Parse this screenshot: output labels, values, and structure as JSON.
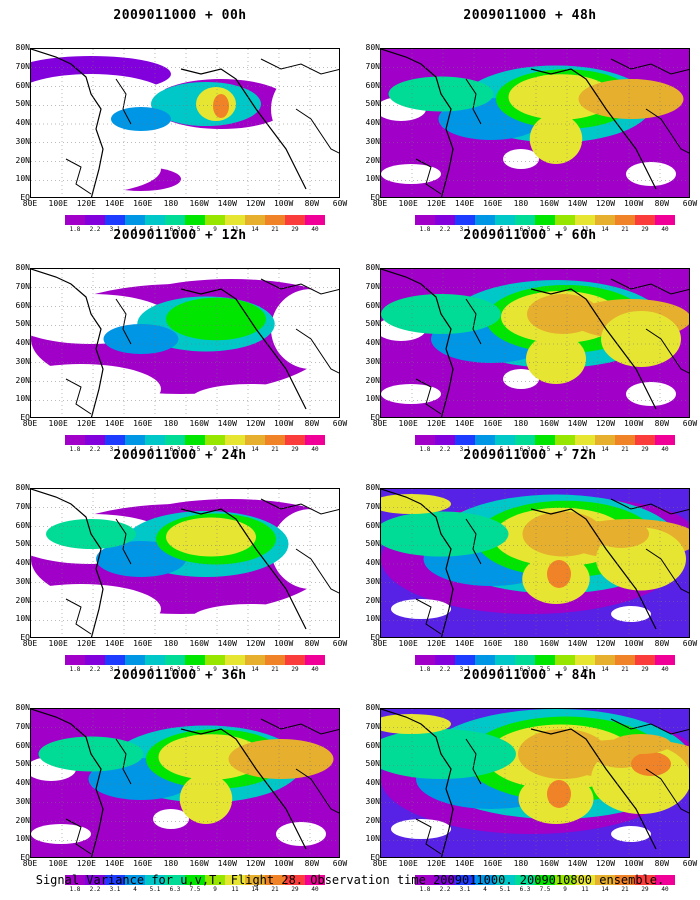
{
  "figure": {
    "caption": "Signal Variance for u,v,T. Flight 28. Observation time 2009011000. 2009010800 ensemble.",
    "lat_labels": [
      "80N",
      "70N",
      "60N",
      "50N",
      "40N",
      "30N",
      "20N",
      "10N",
      "EQ"
    ],
    "lon_labels": [
      "80E",
      "100E",
      "120E",
      "140E",
      "160E",
      "180",
      "160W",
      "140W",
      "120W",
      "100W",
      "80W",
      "60W"
    ],
    "colorbar": {
      "labels": [
        "1.8",
        "2.2",
        "3.1",
        "4",
        "5.1",
        "6.3",
        "7.5",
        "9",
        "11",
        "14",
        "21",
        "29",
        "40"
      ],
      "colors": [
        "#a000c8",
        "#8200dc",
        "#1e3cff",
        "#0096e6",
        "#00c8c8",
        "#00dc96",
        "#00e600",
        "#96e600",
        "#e6e632",
        "#e6af2d",
        "#f08228",
        "#fa3c3c",
        "#f00096"
      ]
    },
    "panels": [
      {
        "title": "2009011000 + 00h"
      },
      {
        "title": "2009011000 + 48h"
      },
      {
        "title": "2009011000 + 12h"
      },
      {
        "title": "2009011000 + 60h"
      },
      {
        "title": "2009011000 + 24h"
      },
      {
        "title": "2009011000 + 72h"
      },
      {
        "title": "2009011000 + 36h"
      },
      {
        "title": "2009011000 + 84h"
      }
    ]
  }
}
